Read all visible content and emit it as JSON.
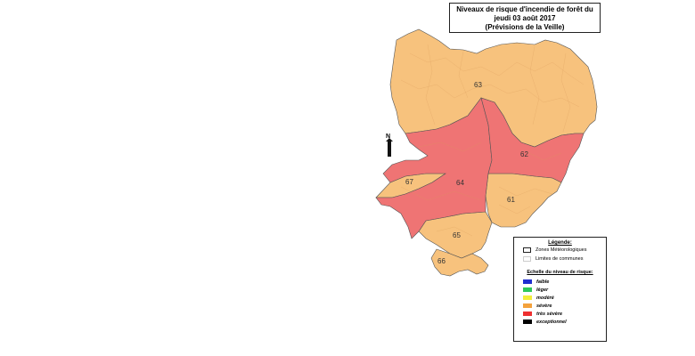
{
  "title": {
    "line1": "Niveaux de risque d'incendie de forêt du",
    "line2": "jeudi 03 août 2017",
    "line3": "(Prévisions de la Veille)"
  },
  "north_label": "N",
  "zones": [
    {
      "id": "63",
      "level": "sévère"
    },
    {
      "id": "62",
      "level": "très sévère"
    },
    {
      "id": "64",
      "level": "très sévère"
    },
    {
      "id": "67",
      "level": "sévère"
    },
    {
      "id": "61",
      "level": "sévère"
    },
    {
      "id": "65",
      "level": "sévère"
    },
    {
      "id": "66",
      "level": "sévère"
    }
  ],
  "legend": {
    "title": "Légende:",
    "items": [
      {
        "label": "Zones Météorologiques"
      },
      {
        "label": "Limites de communes"
      }
    ],
    "scale_title": "Echelle du niveau de risque:",
    "levels": [
      {
        "label": "faible",
        "color": "#1f2fd0"
      },
      {
        "label": "léger",
        "color": "#2ec85a"
      },
      {
        "label": "modéré",
        "color": "#f2ee3a"
      },
      {
        "label": "sévère",
        "color": "#f4a23c"
      },
      {
        "label": "très sévère",
        "color": "#ee3030"
      },
      {
        "label": "exceptionnel",
        "color": "#000000"
      }
    ]
  },
  "colors": {
    "severe": "#f7c27d",
    "tres_severe": "#ef7474"
  }
}
